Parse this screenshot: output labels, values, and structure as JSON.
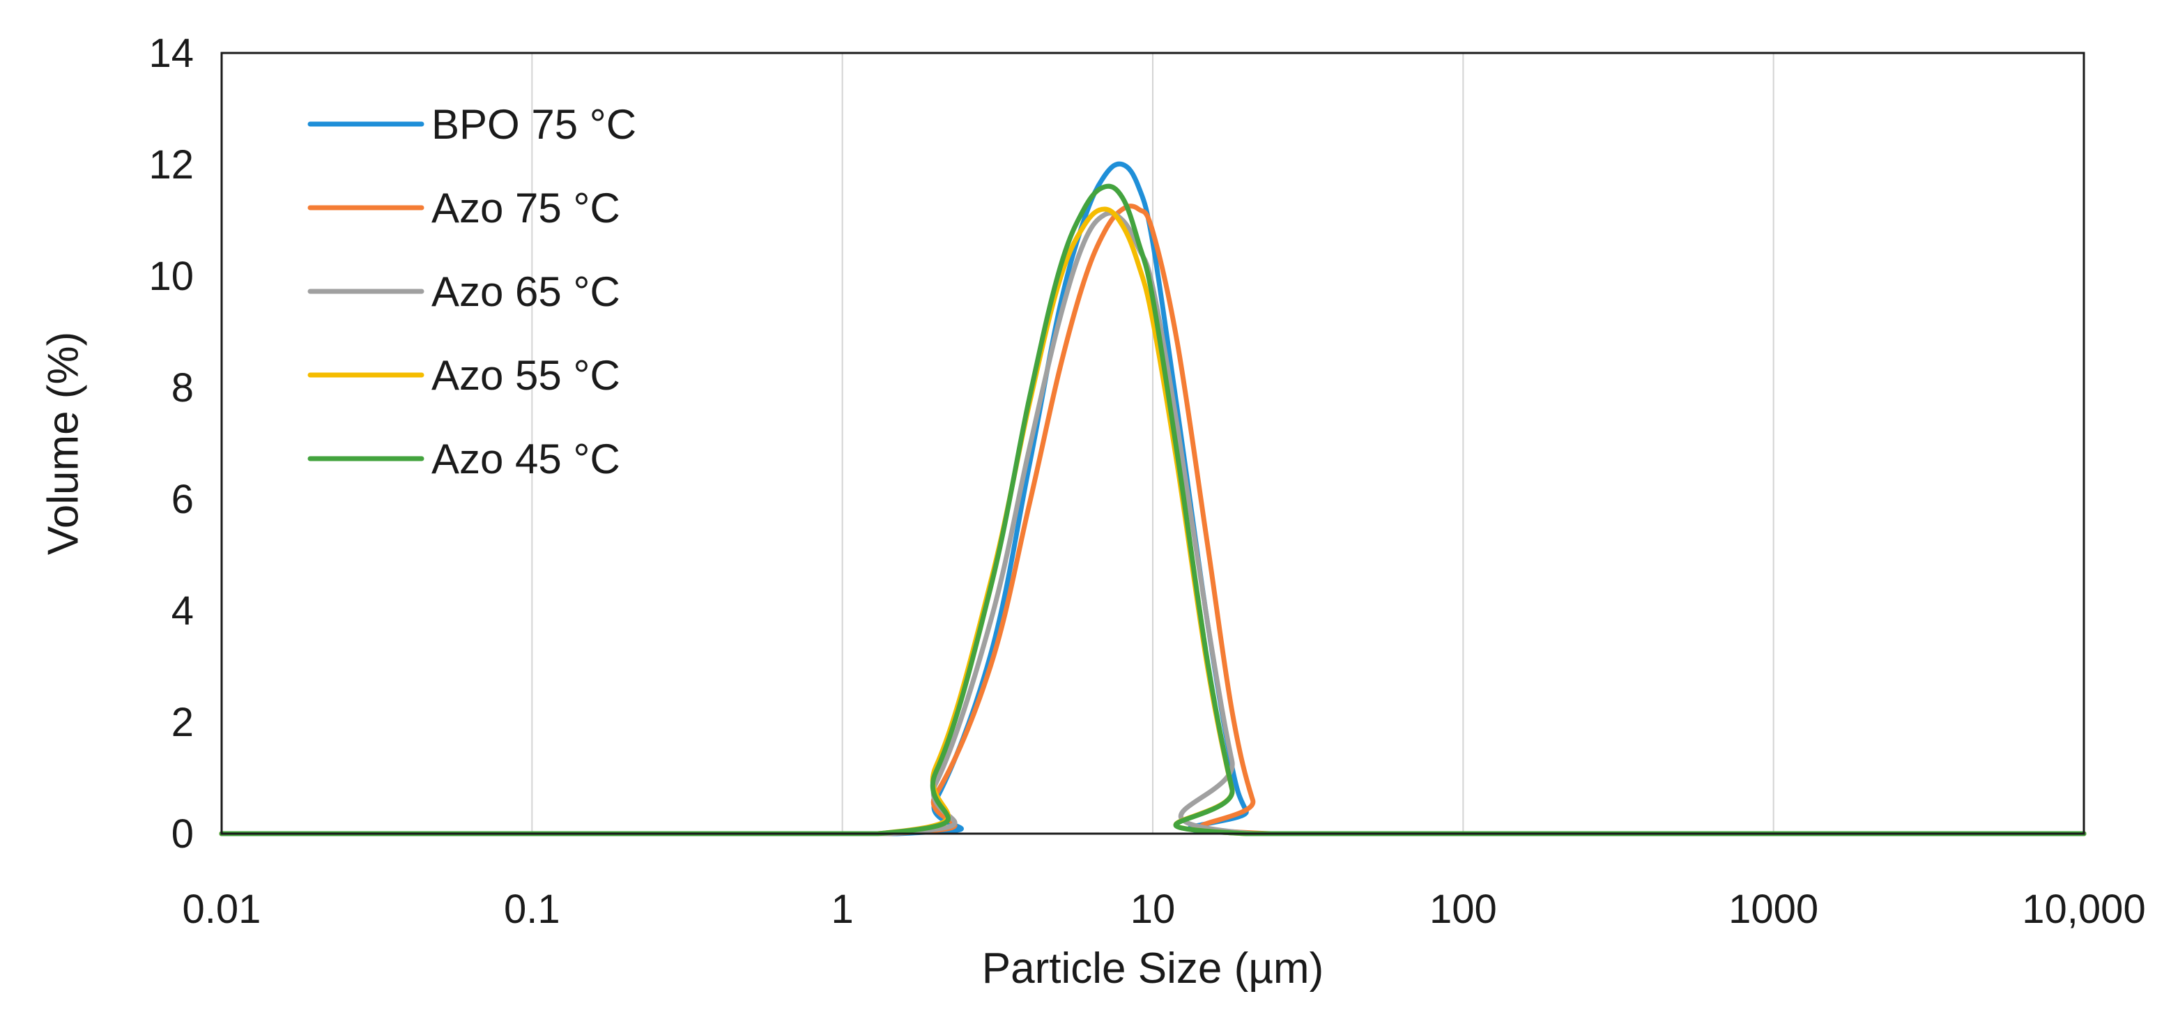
{
  "chart_data": {
    "type": "line",
    "title": "",
    "xlabel": "Particle Size (µm)",
    "ylabel": "Volume (%)",
    "xscale": "log",
    "xlim": [
      0.01,
      10000
    ],
    "ylim": [
      0,
      14
    ],
    "x_ticks": [
      0.01,
      0.1,
      1,
      10,
      100,
      1000,
      10000
    ],
    "x_tick_labels": [
      "0.01",
      "0.1",
      "1",
      "10",
      "100",
      "1000",
      "10,000"
    ],
    "y_ticks": [
      0,
      2,
      4,
      6,
      8,
      10,
      12,
      14
    ],
    "y_tick_labels": [
      "0",
      "2",
      "4",
      "6",
      "8",
      "10",
      "12",
      "14"
    ],
    "grid": "vertical",
    "legend_position": "top-left",
    "series": [
      {
        "name": "BPO 75 °C",
        "color": "#1f8fd8",
        "x": [
          0.01,
          1.5,
          2,
          3,
          4,
          5,
          6,
          7,
          8,
          9,
          10,
          12,
          15,
          18,
          20,
          22,
          10000
        ],
        "y": [
          0,
          0,
          0.6,
          3.2,
          6.6,
          9.4,
          11.0,
          11.8,
          12.0,
          11.6,
          10.6,
          7.6,
          3.8,
          1.2,
          0.4,
          0,
          0
        ]
      },
      {
        "name": "Azo 75 °C",
        "color": "#f47c34",
        "x": [
          0.01,
          1.4,
          2,
          3,
          4,
          5,
          6,
          7,
          8,
          9,
          10,
          12,
          15,
          18,
          21,
          24,
          10000
        ],
        "y": [
          0,
          0,
          0.7,
          3.0,
          5.9,
          8.3,
          9.9,
          10.8,
          11.2,
          11.2,
          10.8,
          8.8,
          5.2,
          2.2,
          0.6,
          0,
          0
        ]
      },
      {
        "name": "Azo 65 °C",
        "color": "#a0a0a0",
        "x": [
          0.01,
          1.4,
          2,
          3,
          4,
          5,
          6,
          7,
          8,
          9,
          10,
          12,
          15,
          18,
          21,
          10000
        ],
        "y": [
          0,
          0,
          0.9,
          3.8,
          6.9,
          9.2,
          10.6,
          11.1,
          11.0,
          10.5,
          9.8,
          7.3,
          3.8,
          1.3,
          0,
          0
        ]
      },
      {
        "name": "Azo 55 °C",
        "color": "#f5bc00",
        "x": [
          0.01,
          1.3,
          2,
          3,
          4,
          5,
          6,
          7,
          8,
          9,
          10,
          12,
          15,
          18,
          20,
          10000
        ],
        "y": [
          0,
          0,
          1.2,
          4.5,
          7.7,
          9.9,
          10.9,
          11.2,
          10.9,
          10.2,
          9.2,
          6.6,
          3.0,
          0.8,
          0,
          0
        ]
      },
      {
        "name": "Azo 45 °C",
        "color": "#43a33e",
        "x": [
          0.01,
          1.3,
          2,
          3,
          4,
          5,
          6,
          7,
          8,
          9,
          10,
          12,
          15,
          18,
          20,
          10000
        ],
        "y": [
          0,
          0,
          1.1,
          4.4,
          7.8,
          10.1,
          11.2,
          11.6,
          11.4,
          10.6,
          9.6,
          6.8,
          3.1,
          0.8,
          0,
          0
        ]
      }
    ]
  }
}
